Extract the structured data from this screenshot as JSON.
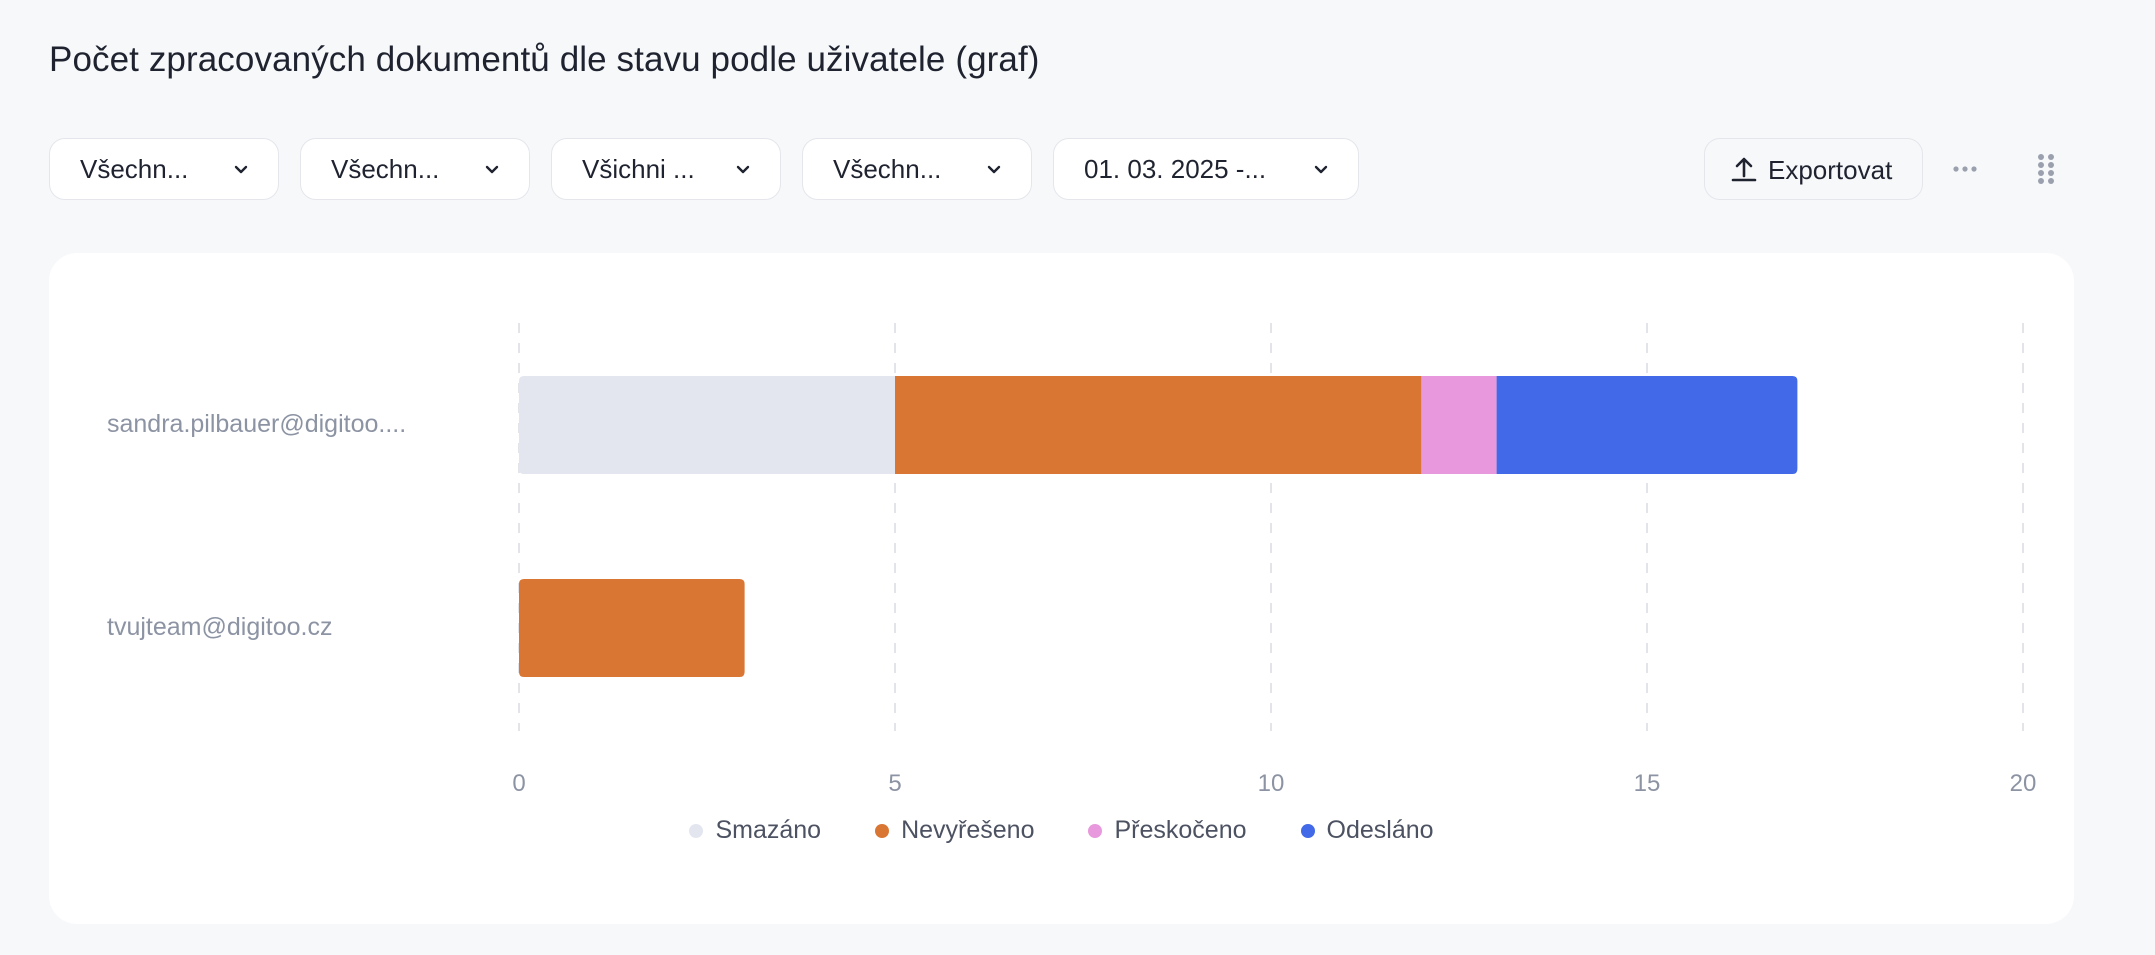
{
  "page": {
    "title": "Počet zpracovaných dokumentů dle stavu podle uživatele (graf)"
  },
  "filters": [
    {
      "label": "Všechn..."
    },
    {
      "label": "Všechn..."
    },
    {
      "label": "Všichni ..."
    },
    {
      "label": "Všechn..."
    },
    {
      "label": "01. 03. 2025 -..."
    }
  ],
  "toolbar": {
    "export_label": "Exportovat"
  },
  "icons": {
    "chevron": "chevron-down-icon",
    "export": "upload-icon",
    "more": "more-horizontal-icon",
    "drag": "drag-handle-icon"
  },
  "chart_data": {
    "type": "bar",
    "orientation": "horizontal",
    "stacked": true,
    "categories": [
      "sandra.pilbauer@digitoo....",
      "tvujteam@digitoo.cz"
    ],
    "series": [
      {
        "name": "Smazáno",
        "color": "#e3e6ef",
        "values": [
          5,
          0
        ]
      },
      {
        "name": "Nevyřešeno",
        "color": "#d97634",
        "values": [
          7,
          3
        ]
      },
      {
        "name": "Přeskočeno",
        "color": "#e898dc",
        "values": [
          1,
          0
        ]
      },
      {
        "name": "Odesláno",
        "color": "#4169e8",
        "values": [
          4,
          0
        ]
      }
    ],
    "xlim": [
      0,
      20
    ],
    "xticks": [
      "0",
      "5",
      "10",
      "15",
      "20"
    ],
    "grid": "vertical dashed",
    "legend": "bottom-center"
  }
}
